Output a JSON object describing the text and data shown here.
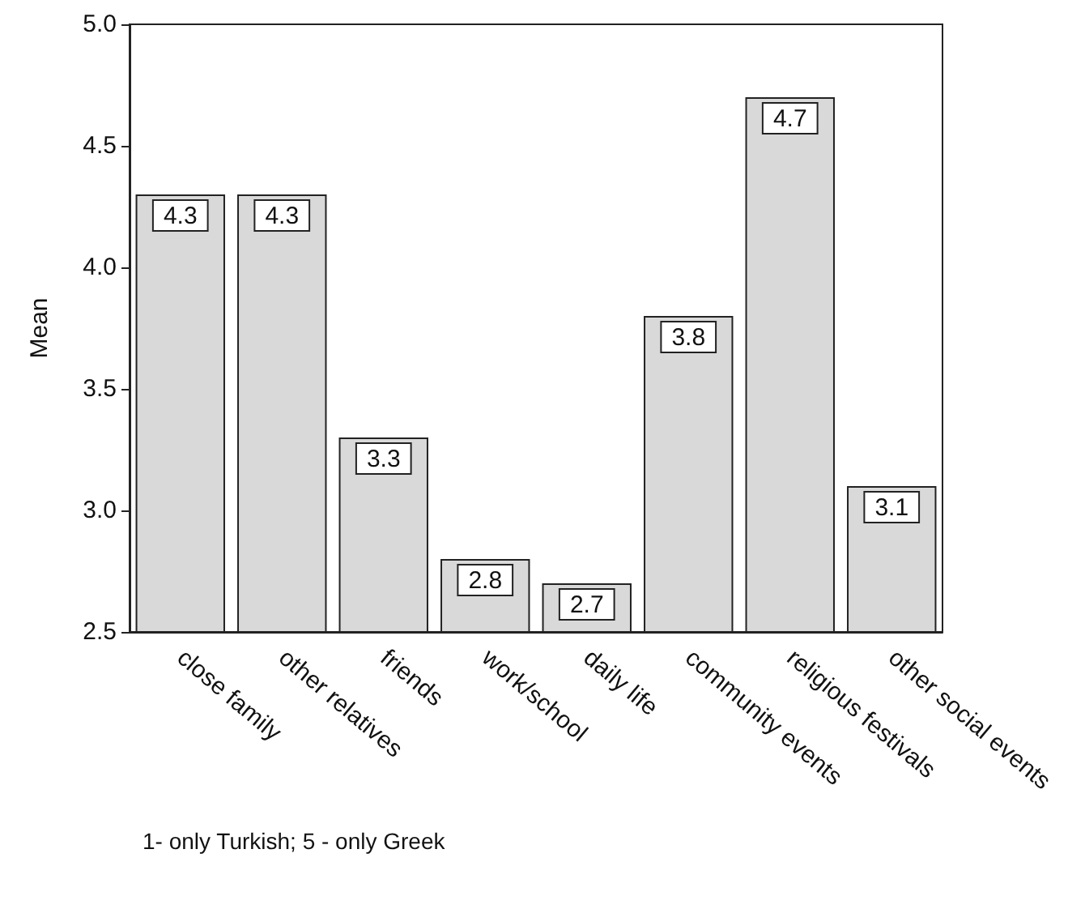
{
  "chart_data": {
    "type": "bar",
    "ylabel": "Mean",
    "categories": [
      "close family",
      "other relatives",
      "friends",
      "work/school",
      "daily life",
      "community events",
      "religious festivals",
      "other social events"
    ],
    "values": [
      4.3,
      4.3,
      3.3,
      2.8,
      2.7,
      3.8,
      4.7,
      3.1
    ],
    "color": "#d9d9d9",
    "ylim": [
      2.5,
      5.0
    ],
    "yticks": [
      2.5,
      {
        "value": 3,
        "label": "3.0"
      },
      3.5,
      {
        "value": 4,
        "label": "4.0"
      },
      4.5,
      {
        "value": 5,
        "label": "5.0"
      }
    ],
    "grid": false,
    "data_labels": true,
    "annotations": [
      "1- only Turkish; 5 - only Greek"
    ]
  }
}
